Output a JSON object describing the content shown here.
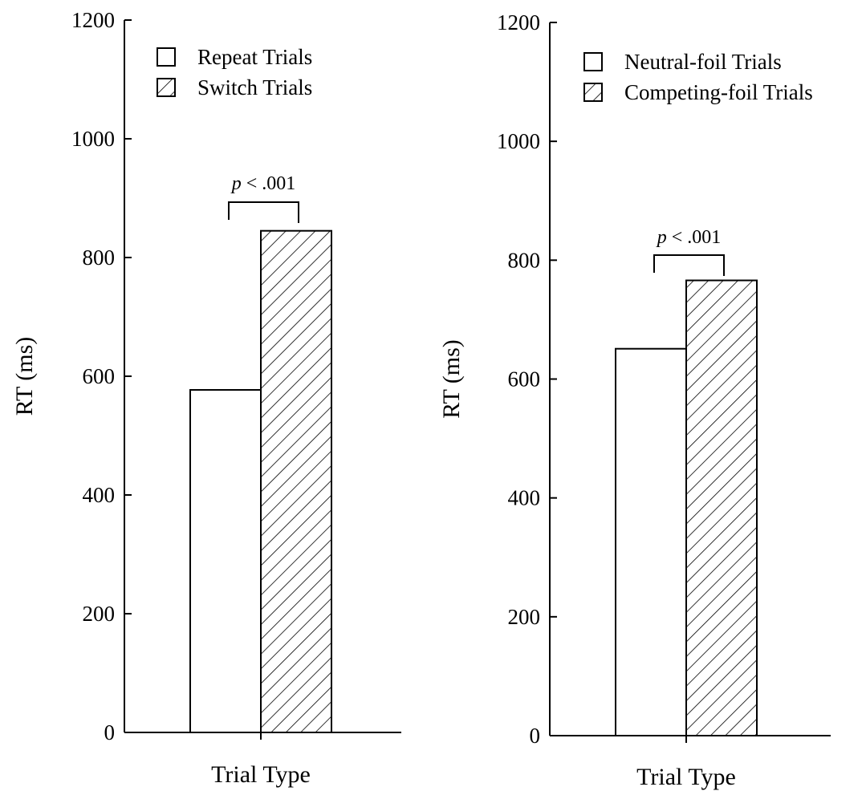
{
  "chart_data": [
    {
      "type": "bar",
      "xlabel": "Trial Type",
      "ylabel": "RT (ms)",
      "ylim": [
        0,
        1200
      ],
      "yticks": [
        0,
        200,
        400,
        600,
        800,
        1000,
        1200
      ],
      "grid": false,
      "legend_position": "top-left",
      "series": [
        {
          "name": "Repeat Trials",
          "values": [
            577
          ],
          "pattern": "none"
        },
        {
          "name": "Switch Trials",
          "values": [
            845
          ],
          "pattern": "hatched"
        }
      ],
      "annotations": [
        {
          "text_italic": "p",
          "text": " < .001",
          "between": [
            "Repeat Trials",
            "Switch Trials"
          ]
        }
      ]
    },
    {
      "type": "bar",
      "xlabel": "Trial Type",
      "ylabel": "RT (ms)",
      "ylim": [
        0,
        1200
      ],
      "yticks": [
        0,
        200,
        400,
        600,
        800,
        1000,
        1200
      ],
      "grid": false,
      "legend_position": "top-left",
      "series": [
        {
          "name": "Neutral-foil Trials",
          "values": [
            651
          ],
          "pattern": "none"
        },
        {
          "name": "Competing-foil Trials",
          "values": [
            766
          ],
          "pattern": "hatched"
        }
      ],
      "annotations": [
        {
          "text_italic": "p",
          "text": " < .001",
          "between": [
            "Neutral-foil Trials",
            "Competing-foil Trials"
          ]
        }
      ]
    }
  ],
  "colors": {
    "ink": "#000000",
    "background": "#ffffff"
  }
}
